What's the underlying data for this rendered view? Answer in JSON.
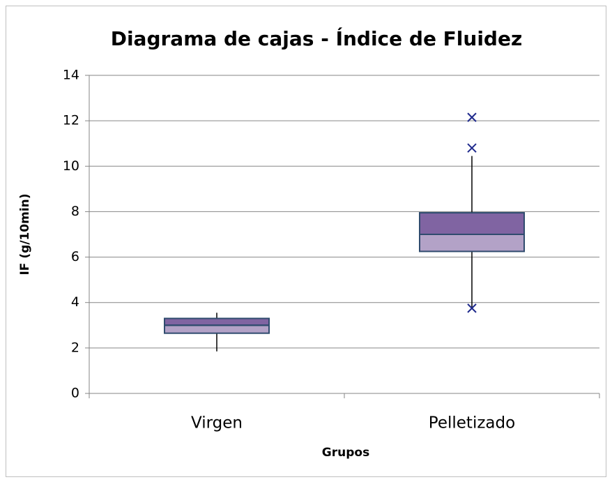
{
  "chart_data": {
    "type": "box",
    "title": "Diagrama de cajas - Índice de Fluidez",
    "xlabel": "Grupos",
    "ylabel": "IF (g/10min)",
    "categories": [
      "Virgen",
      "Pelletizado"
    ],
    "boxes": [
      {
        "min": 1.85,
        "q1": 2.65,
        "median": 3.0,
        "q3": 3.3,
        "max": 3.55,
        "outliers": []
      },
      {
        "min": 3.75,
        "q1": 6.25,
        "median": 7.0,
        "q3": 7.95,
        "max": 10.45,
        "outliers": [
          12.15,
          10.8,
          3.75
        ]
      }
    ],
    "color_lower": "#b3a2c7",
    "color_upper": "#8064a2",
    "edge_color": "#2f4b6e",
    "outlier_color": "#1f2a8c",
    "ylim": [
      0,
      14
    ],
    "yticks": [
      0,
      2,
      4,
      6,
      8,
      10,
      12,
      14
    ],
    "grid": true
  }
}
